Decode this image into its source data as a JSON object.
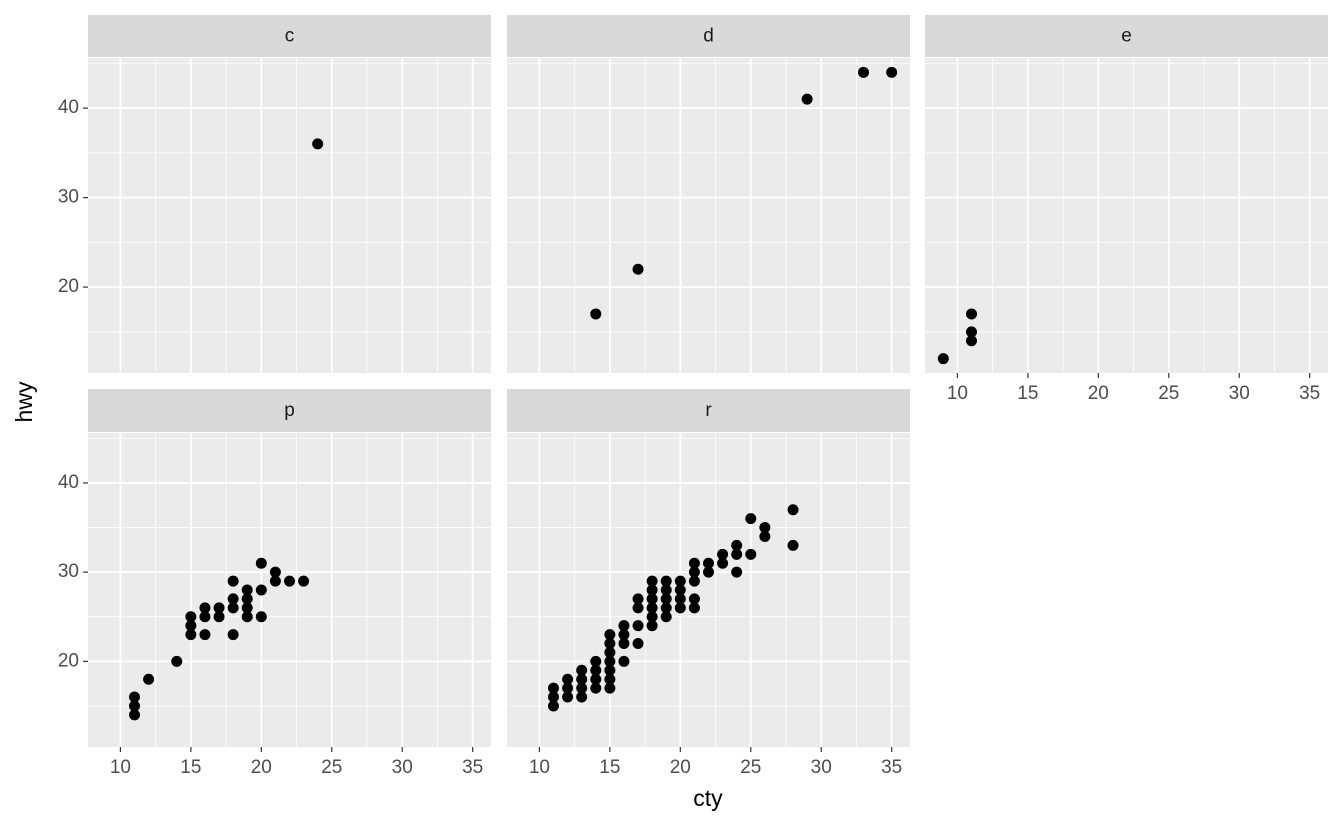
{
  "chart_data": [
    {
      "type": "scatter",
      "title": "c",
      "color": "#000000",
      "x": [
        24
      ],
      "y": [
        36
      ],
      "xlim": [
        7.7,
        36.3
      ],
      "ylim": [
        10.4,
        45.6
      ],
      "xticks": [
        10,
        15,
        20,
        25,
        30,
        35
      ],
      "yticks": [
        20,
        30,
        40
      ],
      "grid": true
    },
    {
      "type": "scatter",
      "title": "d",
      "color": "#000000",
      "x": [
        14,
        17,
        29,
        33,
        35
      ],
      "y": [
        17,
        22,
        41,
        44,
        44
      ],
      "xlim": [
        7.7,
        36.3
      ],
      "ylim": [
        10.4,
        45.6
      ],
      "xticks": [
        10,
        15,
        20,
        25,
        30,
        35
      ],
      "yticks": [
        20,
        30,
        40
      ],
      "grid": true
    },
    {
      "type": "scatter",
      "title": "e",
      "color": "#000000",
      "x": [
        9,
        11,
        11,
        11
      ],
      "y": [
        12,
        17,
        15,
        14
      ],
      "xlim": [
        7.7,
        36.3
      ],
      "ylim": [
        10.4,
        45.6
      ],
      "xticks": [
        10,
        15,
        20,
        25,
        30,
        35
      ],
      "yticks": [
        20,
        30,
        40
      ],
      "grid": true
    },
    {
      "type": "scatter",
      "title": "p",
      "color": "#000000",
      "x": [
        11,
        11,
        11,
        12,
        14,
        15,
        15,
        15,
        16,
        16,
        16,
        17,
        17,
        18,
        18,
        18,
        18,
        19,
        19,
        19,
        19,
        20,
        20,
        20,
        21,
        21,
        22,
        23
      ],
      "y": [
        16,
        15,
        14,
        18,
        20,
        25,
        24,
        23,
        26,
        25,
        23,
        26,
        25,
        29,
        27,
        26,
        23,
        28,
        27,
        26,
        25,
        31,
        28,
        25,
        30,
        29,
        29,
        29
      ],
      "xlim": [
        7.7,
        36.3
      ],
      "ylim": [
        10.4,
        45.6
      ],
      "xticks": [
        10,
        15,
        20,
        25,
        30,
        35
      ],
      "yticks": [
        20,
        30,
        40
      ],
      "grid": true
    },
    {
      "type": "scatter",
      "title": "r",
      "color": "#000000",
      "x": [
        11,
        11,
        11,
        12,
        12,
        12,
        13,
        13,
        13,
        13,
        14,
        14,
        14,
        14,
        15,
        15,
        15,
        15,
        15,
        15,
        15,
        16,
        16,
        16,
        16,
        17,
        17,
        17,
        17,
        18,
        18,
        18,
        18,
        18,
        18,
        19,
        19,
        19,
        19,
        19,
        20,
        20,
        20,
        20,
        21,
        21,
        21,
        21,
        21,
        22,
        22,
        23,
        23,
        24,
        24,
        24,
        25,
        25,
        26,
        26,
        28,
        28
      ],
      "y": [
        17,
        16,
        15,
        18,
        17,
        16,
        19,
        18,
        17,
        16,
        20,
        19,
        18,
        17,
        23,
        22,
        21,
        20,
        19,
        18,
        17,
        24,
        23,
        22,
        20,
        27,
        26,
        24,
        22,
        29,
        28,
        27,
        26,
        25,
        24,
        29,
        28,
        27,
        26,
        25,
        29,
        28,
        27,
        26,
        31,
        30,
        29,
        27,
        26,
        31,
        30,
        32,
        31,
        33,
        32,
        30,
        36,
        32,
        35,
        34,
        37,
        33
      ],
      "xlim": [
        7.7,
        36.3
      ],
      "ylim": [
        10.4,
        45.6
      ],
      "xticks": [
        10,
        15,
        20,
        25,
        30,
        35
      ],
      "yticks": [
        20,
        30,
        40
      ],
      "grid": true
    }
  ],
  "axis_labels": {
    "x": "cty",
    "y": "hwy"
  }
}
